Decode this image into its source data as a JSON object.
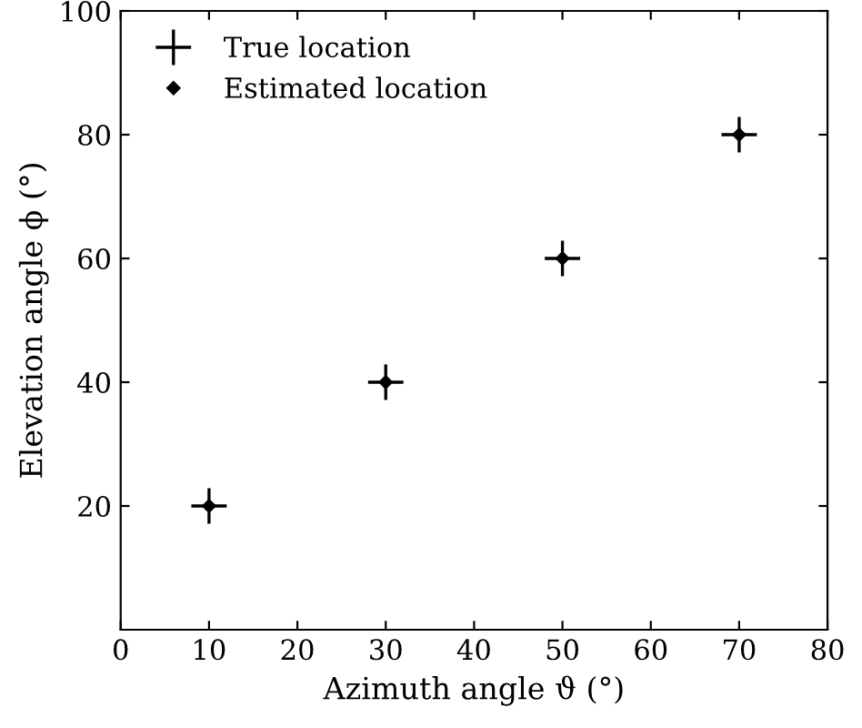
{
  "chart_data": {
    "type": "scatter",
    "xlabel": "Azimuth angle ϑ (°)",
    "ylabel": "Elevation angle ϕ (°)",
    "xlim": [
      0,
      80
    ],
    "xticks": [
      0,
      10,
      20,
      30,
      40,
      50,
      60,
      70,
      80
    ],
    "ylim": [
      0,
      100
    ],
    "yticks": [
      20,
      40,
      60,
      80,
      100
    ],
    "grid": false,
    "legend": "top left",
    "series": [
      {
        "name": "True location",
        "color": "#000000",
        "marker": "cross",
        "x": [
          10,
          30,
          50,
          70
        ],
        "values": [
          20,
          40,
          60,
          80
        ]
      },
      {
        "name": "Estimated location",
        "color": "#000000",
        "marker": "diamond",
        "x": [
          10,
          30,
          50,
          70
        ],
        "values": [
          20,
          40,
          60,
          80
        ]
      }
    ]
  }
}
